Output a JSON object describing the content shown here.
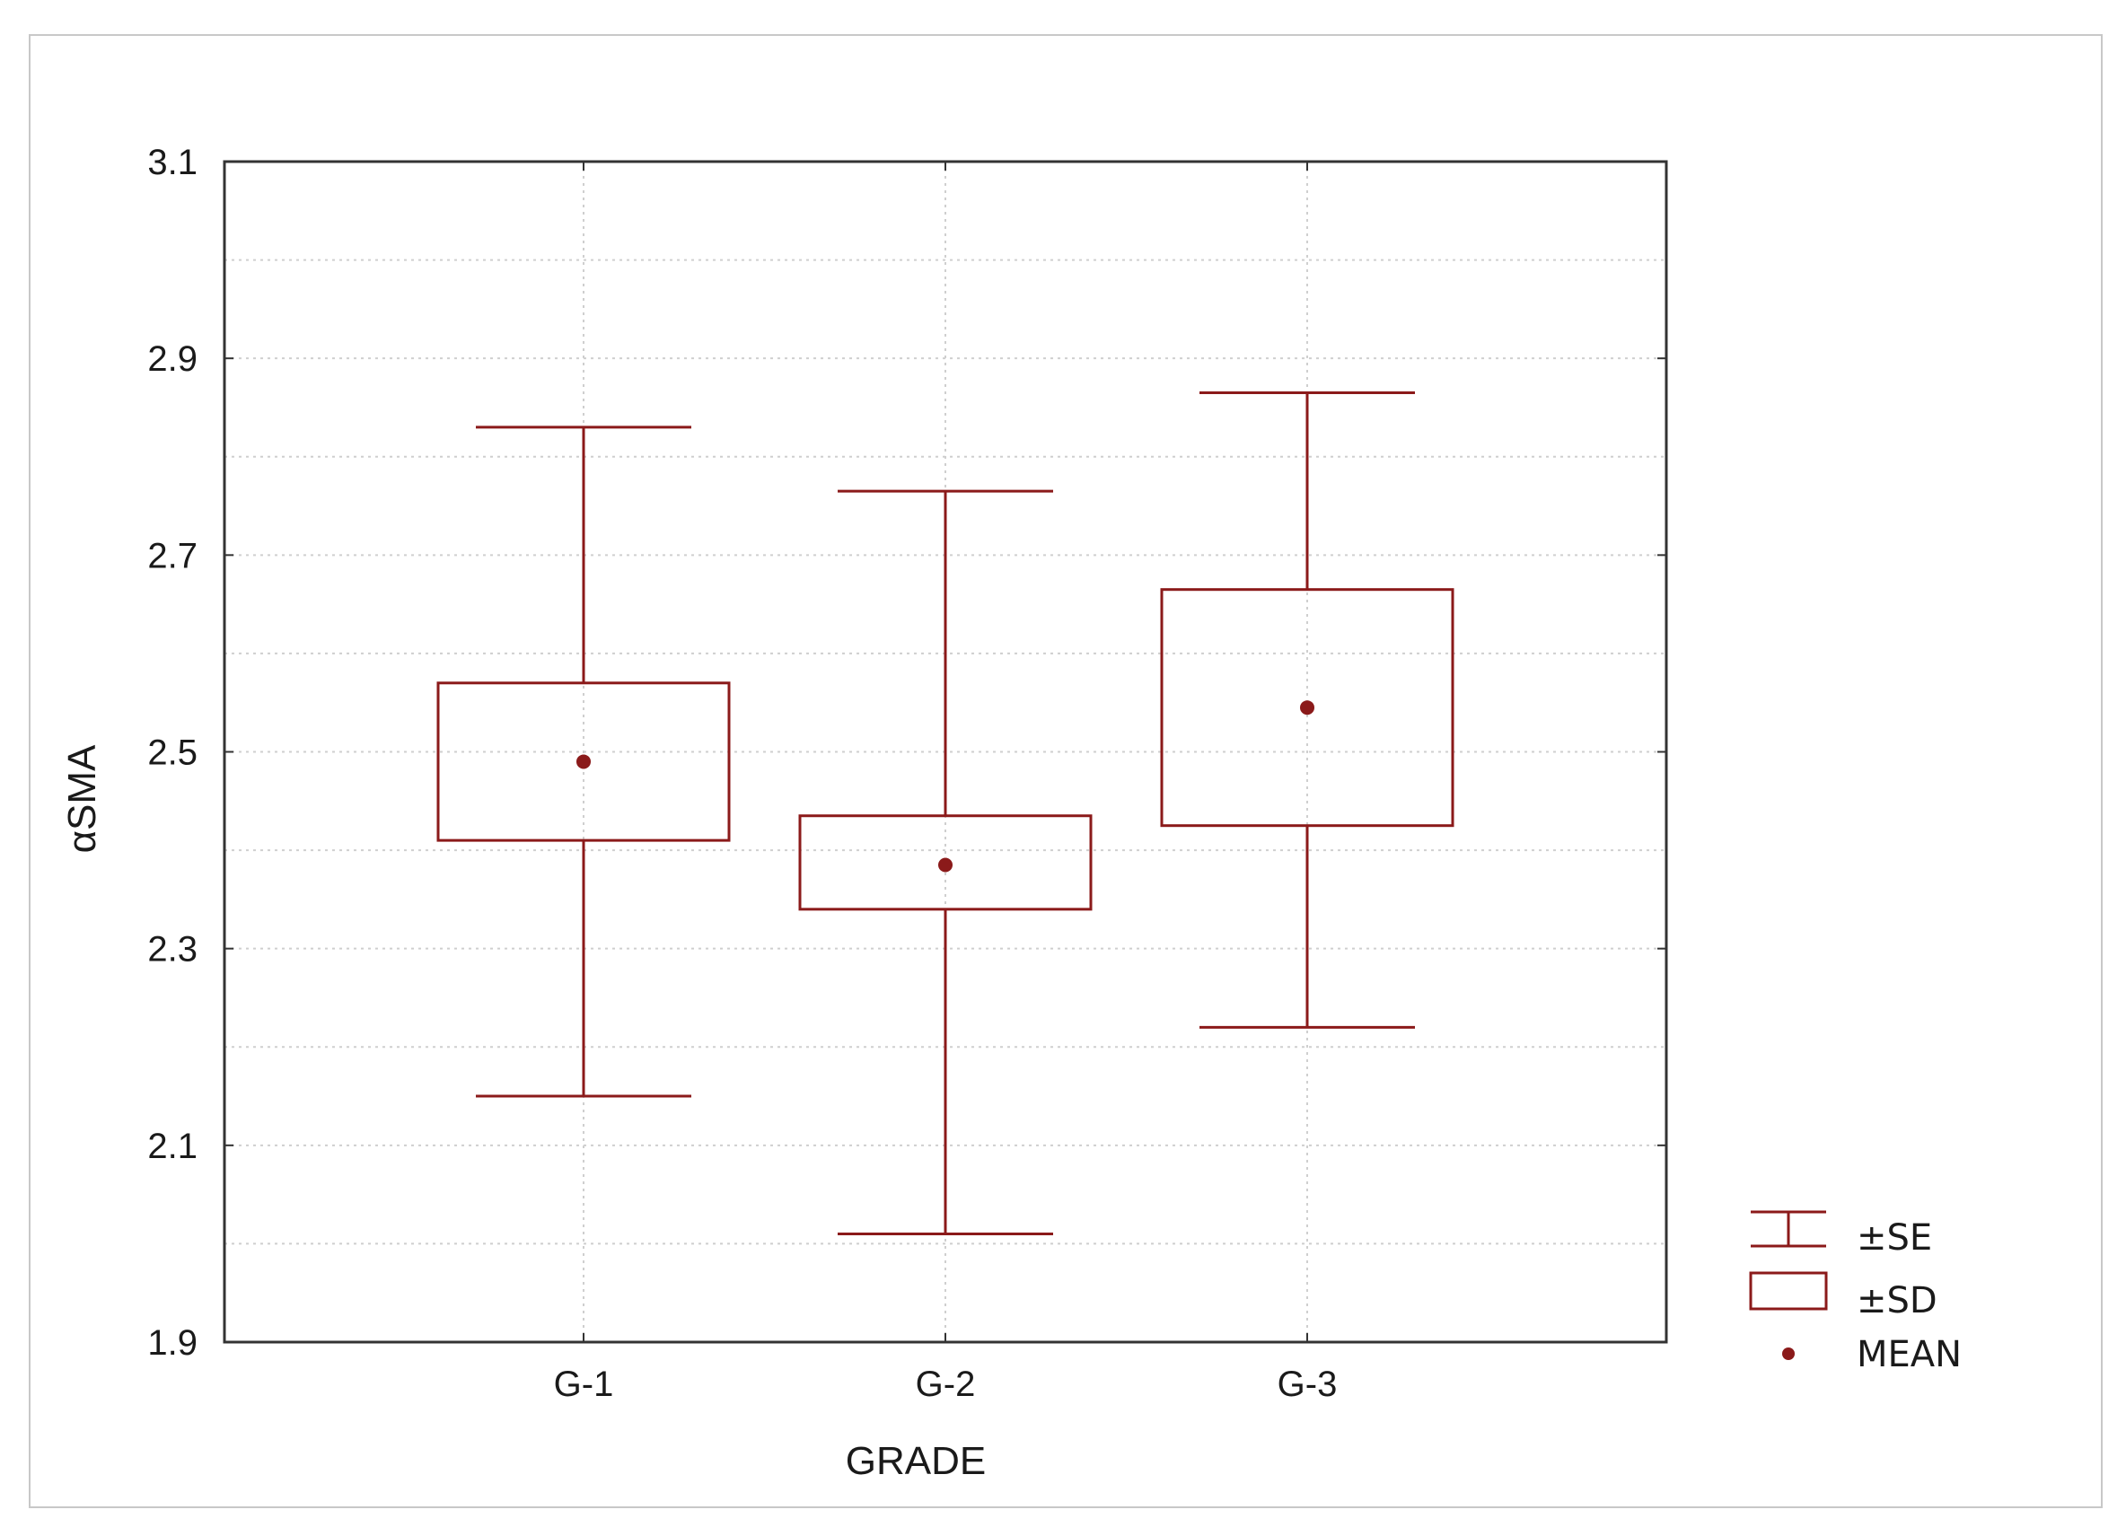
{
  "chart_data": {
    "type": "box",
    "xlabel": "GRADE",
    "ylabel": "αSMA",
    "ylim": [
      1.9,
      3.1
    ],
    "yticks": [
      "1.9",
      "2.1",
      "2.3",
      "2.5",
      "2.7",
      "2.9",
      "3.1"
    ],
    "categories": [
      "G-1",
      "G-2",
      "G-3"
    ],
    "series": [
      {
        "category": "G-1",
        "mean": 2.49,
        "se_low": 2.41,
        "se_high": 2.57,
        "sd_low": 2.15,
        "sd_high": 2.83
      },
      {
        "category": "G-2",
        "mean": 2.385,
        "se_low": 2.34,
        "se_high": 2.435,
        "sd_low": 2.01,
        "sd_high": 2.765
      },
      {
        "category": "G-3",
        "mean": 2.545,
        "se_low": 2.425,
        "se_high": 2.665,
        "sd_low": 2.22,
        "sd_high": 2.865
      }
    ],
    "legend": {
      "position": "bottom-right",
      "items": [
        {
          "symbol": "whisker",
          "label": "±SE"
        },
        {
          "symbol": "box",
          "label": "±SD"
        },
        {
          "symbol": "dot",
          "label": "MEAN"
        }
      ]
    },
    "grid": true,
    "color": "#8b1a1a"
  }
}
